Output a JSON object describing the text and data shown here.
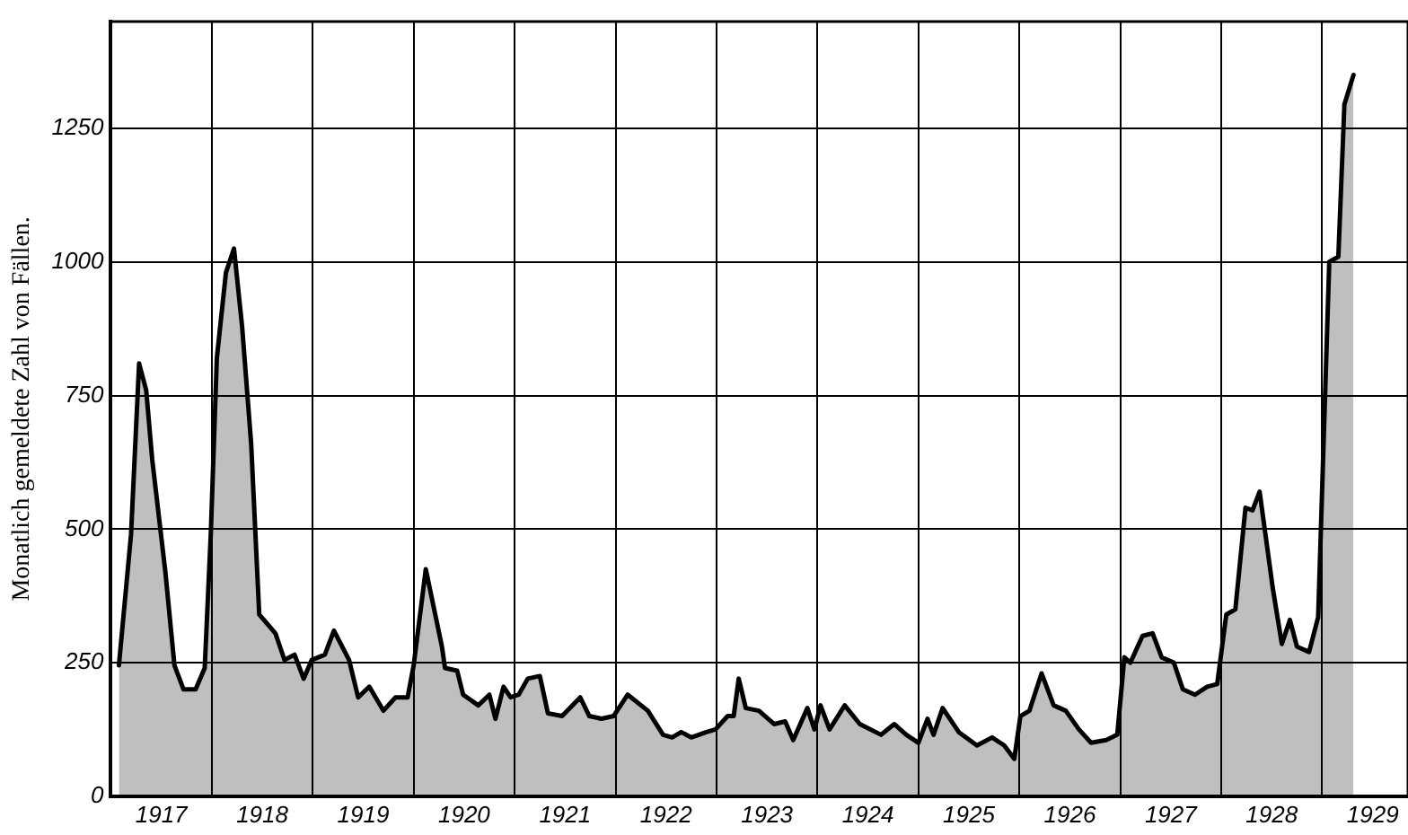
{
  "chart_data": {
    "type": "area",
    "ylabel": "Monatlich gemeldete Zahl von Fällen.",
    "series": [
      {
        "color": "#000000",
        "x": [
          1917.08,
          1917.2,
          1917.28,
          1917.35,
          1917.41,
          1917.54,
          1917.63,
          1917.72,
          1917.84,
          1917.93,
          1917.99,
          1918.05,
          1918.14,
          1918.22,
          1918.3,
          1918.39,
          1918.47,
          1918.63,
          1918.72,
          1918.82,
          1918.91,
          1918.99,
          1919.12,
          1919.21,
          1919.36,
          1919.45,
          1919.56,
          1919.7,
          1919.82,
          1919.94,
          1920.0,
          1920.12,
          1920.28,
          1920.31,
          1920.43,
          1920.49,
          1920.64,
          1920.75,
          1920.81,
          1920.89,
          1920.96,
          1921.04,
          1921.13,
          1921.25,
          1921.33,
          1921.47,
          1921.65,
          1921.74,
          1921.86,
          1921.98,
          1922.12,
          1922.32,
          1922.47,
          1922.56,
          1922.65,
          1922.75,
          1922.9,
          1922.99,
          1923.11,
          1923.17,
          1923.22,
          1923.29,
          1923.42,
          1923.57,
          1923.68,
          1923.76,
          1923.9,
          1923.97,
          1924.03,
          1924.12,
          1924.27,
          1924.42,
          1924.63,
          1924.76,
          1924.88,
          1925.0,
          1925.09,
          1925.15,
          1925.24,
          1925.4,
          1925.58,
          1925.73,
          1925.85,
          1925.95,
          1926.01,
          1926.1,
          1926.22,
          1926.34,
          1926.46,
          1926.59,
          1926.71,
          1926.86,
          1926.97,
          1927.04,
          1927.1,
          1927.22,
          1927.32,
          1927.41,
          1927.53,
          1927.62,
          1927.74,
          1927.86,
          1927.96,
          1928.05,
          1928.14,
          1928.24,
          1928.31,
          1928.38,
          1928.51,
          1928.6,
          1928.68,
          1928.75,
          1928.87,
          1928.96,
          1929.07,
          1929.16,
          1929.22,
          1929.31
        ],
        "values": [
          245,
          490,
          810,
          760,
          630,
          420,
          245,
          200,
          200,
          240,
          490,
          820,
          980,
          1025,
          880,
          660,
          340,
          305,
          255,
          265,
          220,
          255,
          265,
          310,
          255,
          185,
          205,
          160,
          185,
          185,
          245,
          425,
          280,
          240,
          235,
          190,
          170,
          190,
          145,
          205,
          185,
          190,
          220,
          225,
          155,
          150,
          185,
          150,
          145,
          150,
          190,
          160,
          115,
          110,
          120,
          110,
          120,
          125,
          150,
          150,
          220,
          165,
          160,
          135,
          140,
          105,
          165,
          125,
          170,
          125,
          170,
          135,
          115,
          135,
          115,
          100,
          145,
          115,
          165,
          120,
          95,
          110,
          95,
          70,
          150,
          160,
          230,
          170,
          160,
          125,
          100,
          105,
          115,
          260,
          250,
          300,
          305,
          260,
          250,
          200,
          190,
          205,
          210,
          340,
          350,
          540,
          535,
          570,
          390,
          285,
          330,
          280,
          270,
          335,
          1000,
          1010,
          1295,
          1350
        ]
      }
    ],
    "xlim": [
      1917,
      1929.85
    ],
    "xticks": [
      {
        "value": 1917,
        "label": null
      },
      {
        "value": 1917.5,
        "label": "1917"
      },
      {
        "value": 1918,
        "label": null
      },
      {
        "value": 1918.5,
        "label": "1918"
      },
      {
        "value": 1919,
        "label": null
      },
      {
        "value": 1919.5,
        "label": "1919"
      },
      {
        "value": 1920,
        "label": null
      },
      {
        "value": 1920.5,
        "label": "1920"
      },
      {
        "value": 1921,
        "label": null
      },
      {
        "value": 1921.5,
        "label": "1921"
      },
      {
        "value": 1922,
        "label": null
      },
      {
        "value": 1922.5,
        "label": "1922"
      },
      {
        "value": 1923,
        "label": null
      },
      {
        "value": 1923.5,
        "label": "1923"
      },
      {
        "value": 1924,
        "label": null
      },
      {
        "value": 1924.5,
        "label": "1924"
      },
      {
        "value": 1925,
        "label": null
      },
      {
        "value": 1925.5,
        "label": "1925"
      },
      {
        "value": 1926,
        "label": null
      },
      {
        "value": 1926.5,
        "label": "1926"
      },
      {
        "value": 1927,
        "label": null
      },
      {
        "value": 1927.5,
        "label": "1927"
      },
      {
        "value": 1928,
        "label": null
      },
      {
        "value": 1928.5,
        "label": "1928"
      },
      {
        "value": 1929,
        "label": null
      },
      {
        "value": 1929.5,
        "label": "1929"
      }
    ],
    "ylim": [
      0,
      1450
    ],
    "yticks": [
      0,
      250,
      500,
      750,
      1000,
      1250
    ],
    "grid": true,
    "legend": false,
    "marker": "none",
    "line_style": "solid"
  }
}
